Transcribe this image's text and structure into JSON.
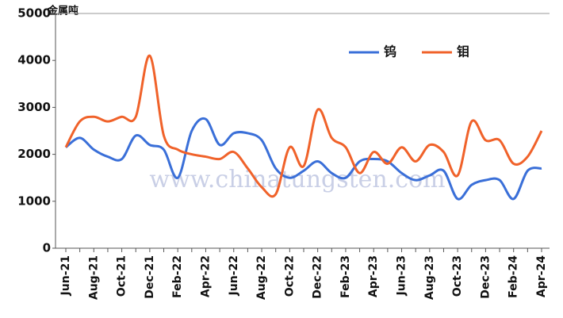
{
  "chart_data": {
    "type": "line",
    "unit_label": "金属吨",
    "watermark": "www.chinatungsten.com",
    "categories": [
      "Jun-21",
      null,
      "Aug-21",
      null,
      "Oct-21",
      null,
      "Dec-21",
      null,
      "Feb-22",
      null,
      "Apr-22",
      null,
      "Jun-22",
      null,
      "Aug-22",
      null,
      "Oct-22",
      null,
      "Dec-22",
      null,
      "Feb-23",
      null,
      "Apr-23",
      null,
      "Jun-23",
      null,
      "Aug-23",
      null,
      "Oct-23",
      null,
      "Dec-23",
      null,
      "Feb-24",
      null,
      "Apr-24"
    ],
    "series": [
      {
        "name": "钨",
        "color": "#3a6fd8",
        "values": [
          2150,
          2350,
          2100,
          1950,
          1900,
          2400,
          2200,
          2100,
          1500,
          2500,
          2750,
          2200,
          2450,
          2450,
          2300,
          1700,
          1500,
          1650,
          1850,
          1600,
          1500,
          1850,
          1900,
          1850,
          1600,
          1450,
          1550,
          1650,
          1050,
          1350,
          1450,
          1450,
          1050,
          1650,
          1700
        ]
      },
      {
        "name": "钼",
        "color": "#f0622a",
        "values": [
          2150,
          2700,
          2800,
          2700,
          2800,
          2800,
          4100,
          2400,
          2100,
          2000,
          1950,
          1900,
          2050,
          1700,
          1300,
          1150,
          2150,
          1750,
          2950,
          2350,
          2150,
          1600,
          2050,
          1800,
          2150,
          1850,
          2200,
          2050,
          1550,
          2700,
          2300,
          2300,
          1800,
          1950,
          2500
        ]
      }
    ],
    "ylim": [
      0,
      5000
    ],
    "yticks": [
      0,
      1000,
      2000,
      3000,
      4000,
      5000
    ],
    "grid": false,
    "legend": "top-right"
  }
}
